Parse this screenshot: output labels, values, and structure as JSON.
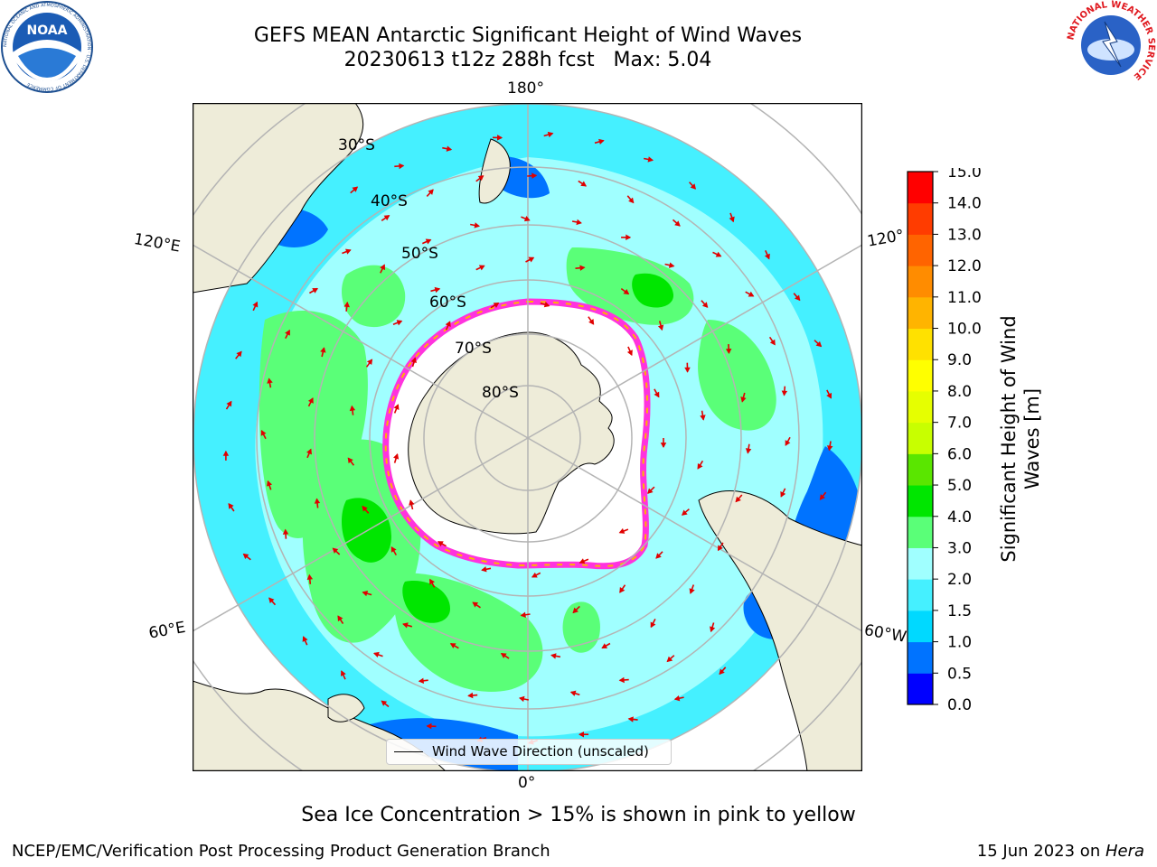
{
  "header": {
    "title_line1": "GEFS MEAN Antarctic Significant Height of Wind Waves",
    "title_line2": "20230613 t12z 288h fcst   Max: 5.04"
  },
  "logos": {
    "left": {
      "name": "noaa-logo",
      "text": "NOAA",
      "ring_text": "NATIONAL OCEANIC AND ATMOSPHERIC ADMINISTRATION · U.S. DEPARTMENT OF COMMERCE"
    },
    "right": {
      "name": "nws-logo",
      "ring_text": "NATIONAL WEATHER SERVICE"
    }
  },
  "map": {
    "projection": "south-polar-stereographic",
    "longitude_labels": [
      "180°",
      "120°E",
      "120°",
      "60°E",
      "60°W",
      "0°"
    ],
    "latitude_labels": [
      "30°S",
      "40°S",
      "50°S",
      "60°S",
      "70°S",
      "80°S"
    ],
    "legend": {
      "label": "Wind Wave Direction (unscaled)"
    },
    "colors": {
      "land": "#eeecd9",
      "ice": "#ffffff",
      "gridline": "#b4b4b4",
      "arrow": "#e00000",
      "ice_edge": "#ff33dd"
    }
  },
  "colorbar": {
    "label_line1": "Significant Height of Wind",
    "label_line2": "Waves [m]",
    "ticks": [
      "0.0",
      "0.5",
      "1.0",
      "1.5",
      "2.0",
      "3.0",
      "4.0",
      "5.0",
      "6.0",
      "7.0",
      "8.0",
      "9.0",
      "10.0",
      "11.0",
      "12.0",
      "13.0",
      "14.0",
      "15.0"
    ],
    "colors": [
      "#0000ff",
      "#0073ff",
      "#00d9ff",
      "#45f0ff",
      "#a0ffff",
      "#5aff78",
      "#00e600",
      "#5ae600",
      "#c8ff00",
      "#e6ff00",
      "#ffff00",
      "#ffe100",
      "#ffb400",
      "#ff8c00",
      "#ff6400",
      "#ff3c00",
      "#ff0000"
    ]
  },
  "caption": "Sea Ice Concentration > 15% is shown in pink to yellow",
  "footer": {
    "left": "NCEP/EMC/Verification Post Processing Product Generation Branch",
    "date": "15 Jun 2023 on ",
    "host": "Hera"
  }
}
